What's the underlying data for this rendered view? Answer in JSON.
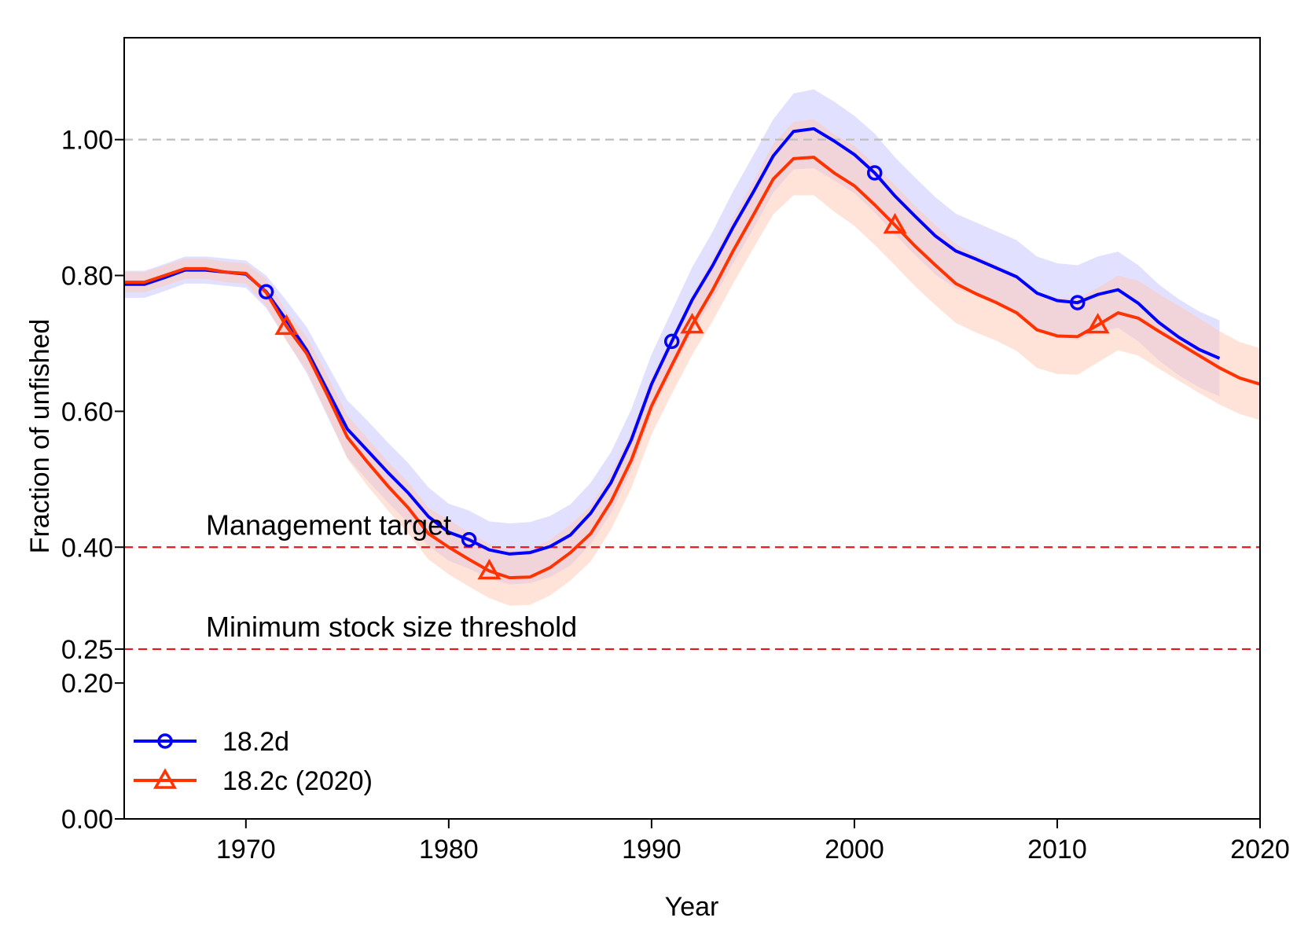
{
  "chart_data": {
    "type": "line",
    "title": "",
    "xlabel": "Year",
    "ylabel": "Fraction of unfished",
    "xlim": [
      1964,
      2020
    ],
    "ylim": [
      0,
      1.15
    ],
    "x_ticks": [
      1970,
      1980,
      1990,
      2000,
      2010,
      2020
    ],
    "x_tick_labels": [
      "1970",
      "1980",
      "1990",
      "2000",
      "2010",
      "2020"
    ],
    "y_ticks": [
      0,
      0.2,
      0.25,
      0.4,
      0.6,
      0.8,
      1.0
    ],
    "y_tick_labels": [
      "0.00",
      "0.20",
      "0.25",
      "0.40",
      "0.60",
      "0.80",
      "1.00"
    ],
    "grid": false,
    "legend_position": "bottom-left",
    "reference_lines": [
      {
        "y": 1.0,
        "color": "#bdbdbd",
        "style": "dashed",
        "label": ""
      },
      {
        "y": 0.4,
        "color": "#e31a1c",
        "style": "dashed",
        "label": "Management target"
      },
      {
        "y": 0.25,
        "color": "#e31a1c",
        "style": "dashed",
        "label": "Minimum stock size threshold"
      }
    ],
    "series": [
      {
        "name": "18.2d",
        "color": "#0000ff",
        "band_color": "#c8c8ff",
        "marker": "circle",
        "marker_years": [
          1971,
          1981,
          1991,
          2001,
          2011
        ],
        "x": [
          1964,
          1965,
          1966,
          1967,
          1968,
          1969,
          1970,
          1971,
          1972,
          1973,
          1974,
          1975,
          1976,
          1977,
          1978,
          1979,
          1980,
          1981,
          1982,
          1983,
          1984,
          1985,
          1986,
          1987,
          1988,
          1989,
          1990,
          1991,
          1992,
          1993,
          1994,
          1995,
          1996,
          1997,
          1998,
          1999,
          2000,
          2001,
          2002,
          2003,
          2004,
          2005,
          2006,
          2007,
          2008,
          2009,
          2010,
          2011,
          2012,
          2013,
          2014,
          2015,
          2016,
          2017,
          2018
        ],
        "values": [
          0.787,
          0.787,
          0.797,
          0.808,
          0.808,
          0.805,
          0.802,
          0.776,
          0.734,
          0.69,
          0.632,
          0.574,
          0.542,
          0.51,
          0.48,
          0.445,
          0.422,
          0.411,
          0.396,
          0.39,
          0.392,
          0.401,
          0.418,
          0.45,
          0.495,
          0.558,
          0.64,
          0.703,
          0.764,
          0.814,
          0.87,
          0.922,
          0.976,
          1.012,
          1.016,
          0.998,
          0.978,
          0.951,
          0.917,
          0.887,
          0.858,
          0.836,
          0.824,
          0.811,
          0.798,
          0.774,
          0.763,
          0.76,
          0.772,
          0.779,
          0.759,
          0.731,
          0.709,
          0.691,
          0.678
        ],
        "lower": [
          0.767,
          0.767,
          0.777,
          0.788,
          0.788,
          0.785,
          0.782,
          0.752,
          0.705,
          0.656,
          0.594,
          0.532,
          0.498,
          0.466,
          0.436,
          0.402,
          0.38,
          0.368,
          0.354,
          0.345,
          0.347,
          0.356,
          0.373,
          0.405,
          0.45,
          0.513,
          0.596,
          0.658,
          0.716,
          0.764,
          0.817,
          0.868,
          0.922,
          0.956,
          0.958,
          0.94,
          0.921,
          0.893,
          0.86,
          0.83,
          0.801,
          0.781,
          0.77,
          0.757,
          0.744,
          0.72,
          0.708,
          0.705,
          0.716,
          0.723,
          0.703,
          0.675,
          0.653,
          0.635,
          0.622
        ],
        "upper": [
          0.807,
          0.807,
          0.817,
          0.828,
          0.828,
          0.825,
          0.822,
          0.8,
          0.763,
          0.724,
          0.67,
          0.616,
          0.586,
          0.554,
          0.524,
          0.488,
          0.464,
          0.454,
          0.438,
          0.435,
          0.437,
          0.446,
          0.463,
          0.495,
          0.54,
          0.603,
          0.684,
          0.748,
          0.812,
          0.864,
          0.923,
          0.976,
          1.03,
          1.068,
          1.074,
          1.056,
          1.035,
          1.009,
          0.974,
          0.944,
          0.915,
          0.891,
          0.878,
          0.865,
          0.852,
          0.828,
          0.818,
          0.815,
          0.828,
          0.835,
          0.815,
          0.787,
          0.765,
          0.747,
          0.734
        ]
      },
      {
        "name": "18.2c (2020)",
        "color": "#ff3300",
        "band_color": "#ffc8b4",
        "marker": "triangle",
        "marker_years": [
          1972,
          1982,
          1992,
          2002,
          2012
        ],
        "x": [
          1964,
          1965,
          1966,
          1967,
          1968,
          1969,
          1970,
          1971,
          1972,
          1973,
          1974,
          1975,
          1976,
          1977,
          1978,
          1979,
          1980,
          1981,
          1982,
          1983,
          1984,
          1985,
          1986,
          1987,
          1988,
          1989,
          1990,
          1991,
          1992,
          1993,
          1994,
          1995,
          1996,
          1997,
          1998,
          1999,
          2000,
          2001,
          2002,
          2003,
          2004,
          2005,
          2006,
          2007,
          2008,
          2009,
          2010,
          2011,
          2012,
          2013,
          2014,
          2015,
          2016,
          2017,
          2018,
          2019,
          2020
        ],
        "values": [
          0.79,
          0.79,
          0.8,
          0.81,
          0.81,
          0.805,
          0.803,
          0.775,
          0.725,
          0.685,
          0.625,
          0.562,
          0.525,
          0.49,
          0.458,
          0.42,
          0.4,
          0.382,
          0.365,
          0.355,
          0.356,
          0.37,
          0.392,
          0.42,
          0.467,
          0.528,
          0.608,
          0.668,
          0.727,
          0.778,
          0.835,
          0.888,
          0.942,
          0.972,
          0.974,
          0.951,
          0.932,
          0.904,
          0.874,
          0.843,
          0.815,
          0.788,
          0.773,
          0.76,
          0.745,
          0.72,
          0.711,
          0.71,
          0.727,
          0.745,
          0.737,
          0.718,
          0.7,
          0.682,
          0.664,
          0.649,
          0.64
        ],
        "lower": [
          0.775,
          0.775,
          0.785,
          0.795,
          0.795,
          0.79,
          0.788,
          0.755,
          0.703,
          0.66,
          0.596,
          0.53,
          0.49,
          0.454,
          0.42,
          0.382,
          0.36,
          0.342,
          0.325,
          0.314,
          0.315,
          0.329,
          0.351,
          0.379,
          0.426,
          0.487,
          0.566,
          0.626,
          0.683,
          0.732,
          0.787,
          0.839,
          0.89,
          0.918,
          0.918,
          0.894,
          0.873,
          0.845,
          0.815,
          0.784,
          0.756,
          0.73,
          0.716,
          0.704,
          0.689,
          0.664,
          0.655,
          0.654,
          0.672,
          0.69,
          0.682,
          0.663,
          0.645,
          0.627,
          0.61,
          0.596,
          0.587
        ],
        "upper": [
          0.805,
          0.805,
          0.815,
          0.825,
          0.825,
          0.82,
          0.818,
          0.795,
          0.747,
          0.71,
          0.654,
          0.594,
          0.56,
          0.526,
          0.496,
          0.458,
          0.44,
          0.422,
          0.405,
          0.396,
          0.397,
          0.411,
          0.433,
          0.461,
          0.508,
          0.569,
          0.65,
          0.71,
          0.771,
          0.824,
          0.883,
          0.937,
          0.994,
          1.026,
          1.03,
          1.008,
          0.991,
          0.963,
          0.933,
          0.902,
          0.874,
          0.846,
          0.83,
          0.816,
          0.801,
          0.776,
          0.767,
          0.766,
          0.782,
          0.8,
          0.792,
          0.773,
          0.755,
          0.737,
          0.718,
          0.702,
          0.693
        ]
      }
    ]
  }
}
